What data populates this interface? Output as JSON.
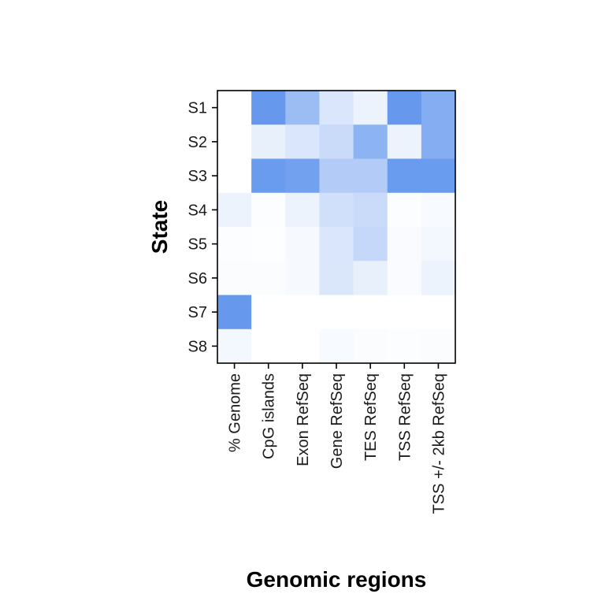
{
  "chart_data": {
    "type": "heatmap",
    "title": "",
    "xlabel": "Genomic regions",
    "ylabel": "State",
    "x_categories": [
      "% Genome",
      "CpG islands",
      "Exon RefSeq",
      "Gene RefSeq",
      "TES RefSeq",
      "TSS RefSeq",
      "TSS +/- 2kb RefSeq"
    ],
    "y_categories": [
      "S1",
      "S2",
      "S3",
      "S4",
      "S5",
      "S6",
      "S7",
      "S8"
    ],
    "low_color": "#ffffff",
    "high_color": "#6699ee",
    "values": [
      [
        0.0,
        1.0,
        0.65,
        0.25,
        0.12,
        1.0,
        0.8
      ],
      [
        0.0,
        0.15,
        0.25,
        0.35,
        0.75,
        0.12,
        0.8
      ],
      [
        0.0,
        0.98,
        0.92,
        0.5,
        0.5,
        0.98,
        0.98
      ],
      [
        0.12,
        0.02,
        0.12,
        0.3,
        0.35,
        0.02,
        0.05
      ],
      [
        0.02,
        0.01,
        0.06,
        0.25,
        0.38,
        0.04,
        0.08
      ],
      [
        0.03,
        0.03,
        0.06,
        0.24,
        0.15,
        0.04,
        0.12
      ],
      [
        1.0,
        0.0,
        0.0,
        0.0,
        0.0,
        0.0,
        0.0
      ],
      [
        0.08,
        0.0,
        0.0,
        0.05,
        0.03,
        0.02,
        0.03
      ]
    ]
  }
}
